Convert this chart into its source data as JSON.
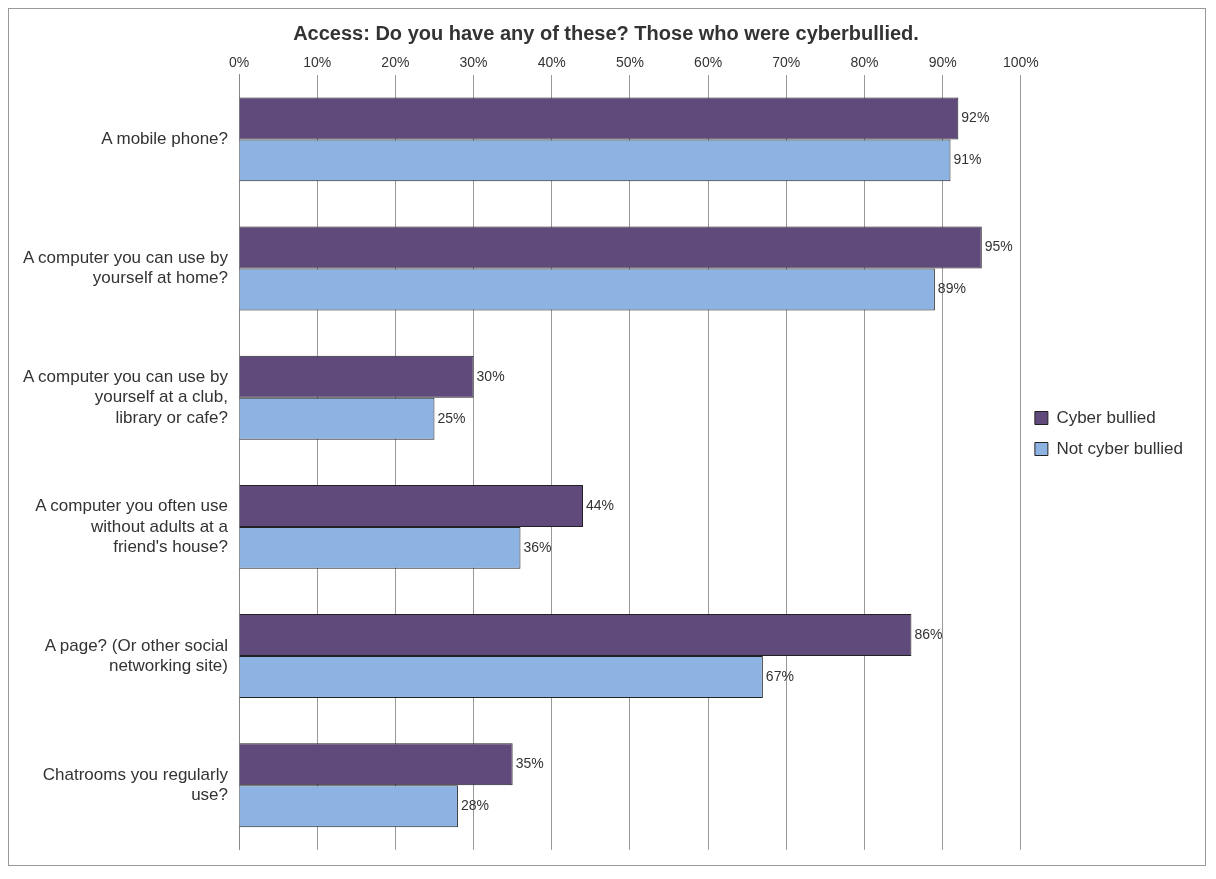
{
  "chart_data": {
    "type": "bar",
    "orientation": "horizontal",
    "title": "Access: Do you have any of these? Those who were cyberbullied.",
    "categories": [
      "A mobile phone?",
      "A computer you can use by yourself at home?",
      "A computer you can use by yourself at a club, library or cafe?",
      "A computer you often use without adults at a friend's house?",
      "A page? (Or other social networking site)",
      "Chatrooms you regularly use?"
    ],
    "series": [
      {
        "name": "Cyber bullied",
        "color": "#604a7b",
        "values": [
          92,
          95,
          30,
          44,
          86,
          35
        ],
        "value_labels": [
          "92%",
          "95%",
          "30%",
          "44%",
          "86%",
          "35%"
        ]
      },
      {
        "name": "Not cyber bullied",
        "color": "#8db3e2",
        "values": [
          91,
          89,
          25,
          36,
          67,
          28
        ],
        "value_labels": [
          "91%",
          "89%",
          "25%",
          "36%",
          "67%",
          "28%"
        ]
      }
    ],
    "xlim": [
      0,
      100
    ],
    "xticks": [
      {
        "value": 0,
        "label": "0%"
      },
      {
        "value": 10,
        "label": "10%"
      },
      {
        "value": 20,
        "label": "20%"
      },
      {
        "value": 30,
        "label": "30%"
      },
      {
        "value": 40,
        "label": "40%"
      },
      {
        "value": 50,
        "label": "50%"
      },
      {
        "value": 60,
        "label": "60%"
      },
      {
        "value": 70,
        "label": "70%"
      },
      {
        "value": 80,
        "label": "80%"
      },
      {
        "value": 90,
        "label": "90%"
      },
      {
        "value": 100,
        "label": "100%"
      }
    ],
    "grid": "x",
    "legend": "right"
  }
}
